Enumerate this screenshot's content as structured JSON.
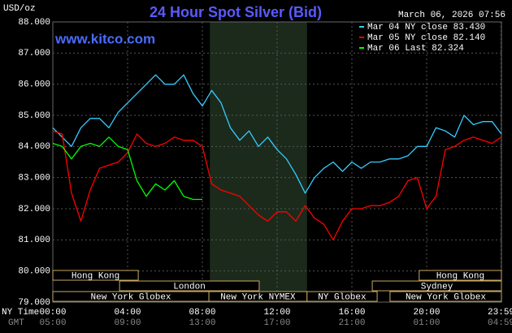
{
  "chart_data": {
    "type": "line",
    "title": "24 Hour Spot Silver (Bid)",
    "subtitle": "March 06, 2026 07:56",
    "watermark": "www.kitco.com",
    "y_label": "USD/oz",
    "x_label": "NY Time",
    "x2_label": "GMT",
    "xlim": [
      0,
      24
    ],
    "xticks": [
      {
        "value": 0,
        "label": "00:00"
      },
      {
        "value": 4,
        "label": "04:00"
      },
      {
        "value": 8,
        "label": "08:00"
      },
      {
        "value": 12,
        "label": "12:00"
      },
      {
        "value": 16,
        "label": "16:00"
      },
      {
        "value": 20,
        "label": "20:00"
      },
      {
        "value": 23.98,
        "label": "23:59"
      }
    ],
    "gmt_labels": [
      "05:00",
      "09:00",
      "13:00",
      "17:00",
      "21:00",
      "01:00",
      "04:59"
    ],
    "ylim": [
      79,
      88
    ],
    "yticks": [
      {
        "value": 79,
        "label": "79.000"
      },
      {
        "value": 80,
        "label": "80.000"
      },
      {
        "value": 81,
        "label": "81.000"
      },
      {
        "value": 82,
        "label": "82.000"
      },
      {
        "value": 83,
        "label": "83.000"
      },
      {
        "value": 84,
        "label": "84.000"
      },
      {
        "value": 85,
        "label": "85.000"
      },
      {
        "value": 86,
        "label": "86.000"
      },
      {
        "value": 87,
        "label": "87.000"
      },
      {
        "value": 88,
        "label": "88.000"
      }
    ],
    "grid": true,
    "shaded_range": [
      8.4,
      13.6
    ],
    "sessions": [
      {
        "name": "Hong Kong",
        "start": 0,
        "end": 4.57,
        "row": 0
      },
      {
        "name": "London",
        "start": 3.57,
        "end": 11.04,
        "row": 1
      },
      {
        "name": "New York Globex",
        "start": 0,
        "end": 8.35,
        "row": 2
      },
      {
        "name": "New York NYMEX",
        "start": 8.35,
        "end": 13.6,
        "row": 2
      },
      {
        "name": "NY Globex",
        "start": 13.6,
        "end": 17.35,
        "row": 2
      },
      {
        "name": "Hong Kong",
        "start": 19.6,
        "end": 24,
        "row": 0
      },
      {
        "name": "Sydney",
        "start": 17.09,
        "end": 24,
        "row": 1
      },
      {
        "name": "New York Globex",
        "start": 18.04,
        "end": 24,
        "row": 2
      }
    ],
    "x": [
      0,
      0.5,
      1,
      1.5,
      2,
      2.5,
      3,
      3.5,
      4,
      4.5,
      5,
      5.5,
      6,
      6.5,
      7,
      7.5,
      8,
      8.5,
      9,
      9.5,
      10,
      10.5,
      11,
      11.5,
      12,
      12.5,
      13,
      13.5,
      14,
      14.5,
      15,
      15.5,
      16,
      16.5,
      17,
      17.5,
      18,
      18.5,
      19,
      19.5,
      20,
      20.5,
      21,
      21.5,
      22,
      22.5,
      23,
      23.5,
      24
    ],
    "series": [
      {
        "name": "Mar 04 NY close 83.430",
        "color": "#33ccff",
        "values": [
          84.6,
          84.3,
          84.0,
          84.6,
          84.9,
          84.9,
          84.6,
          85.1,
          85.4,
          85.7,
          86.0,
          86.3,
          86.0,
          86.0,
          86.3,
          85.7,
          85.3,
          85.8,
          85.4,
          84.6,
          84.2,
          84.5,
          84.0,
          84.3,
          83.9,
          83.6,
          83.1,
          82.5,
          83.0,
          83.3,
          83.5,
          83.2,
          83.5,
          83.3,
          83.5,
          83.5,
          83.6,
          83.6,
          83.7,
          84.0,
          84.0,
          84.6,
          84.5,
          84.3,
          85.0,
          84.7,
          84.8,
          84.8,
          84.4
        ]
      },
      {
        "name": "Mar 05 NY close 82.140",
        "color": "#ff0000",
        "values": [
          84.5,
          84.4,
          82.5,
          81.6,
          82.6,
          83.3,
          83.4,
          83.5,
          83.8,
          84.4,
          84.1,
          84.0,
          84.1,
          84.3,
          84.2,
          84.2,
          84.0,
          82.8,
          82.6,
          82.5,
          82.4,
          82.1,
          81.8,
          81.6,
          81.9,
          81.9,
          81.6,
          82.1,
          81.7,
          81.5,
          81.0,
          81.6,
          82.0,
          82.0,
          82.1,
          82.1,
          82.2,
          82.4,
          82.9,
          83.0,
          82.0,
          82.4,
          83.9,
          84.0,
          84.2,
          84.3,
          84.2,
          84.1,
          84.3
        ]
      },
      {
        "name": "Mar 06 Last 82.324",
        "color": "#00ff00",
        "values": [
          84.1,
          84.0,
          83.6,
          84.0,
          84.1,
          84.0,
          84.3,
          84.0,
          83.9,
          82.9,
          82.4,
          82.8,
          82.6,
          82.9,
          82.4,
          82.3,
          82.3,
          null,
          null,
          null,
          null,
          null,
          null,
          null,
          null,
          null,
          null,
          null,
          null,
          null,
          null,
          null,
          null,
          null,
          null,
          null,
          null,
          null,
          null,
          null,
          null,
          null,
          null,
          null,
          null,
          null,
          null,
          null,
          null
        ]
      }
    ]
  }
}
